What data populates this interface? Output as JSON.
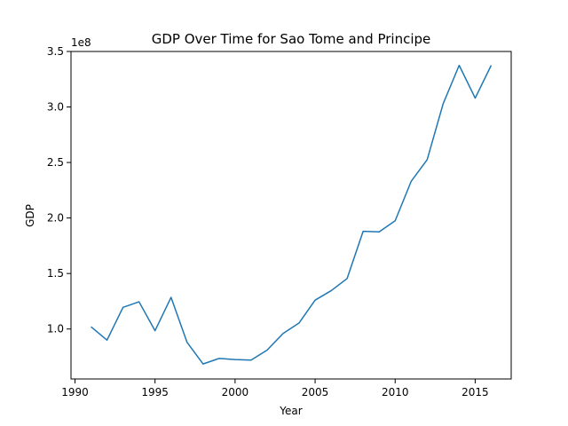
{
  "chart_data": {
    "type": "line",
    "title": "GDP Over Time for Sao Tome and Principe",
    "xlabel": "Year",
    "ylabel": "GDP",
    "y_offset_label": "1e8",
    "xlim": [
      1989.75,
      2017.25
    ],
    "ylim": [
      55000000,
      350000000
    ],
    "xticks": [
      1990,
      1995,
      2000,
      2005,
      2010,
      2015
    ],
    "yticks": [
      100000000,
      150000000,
      200000000,
      250000000,
      300000000,
      350000000
    ],
    "ytick_labels": [
      "1.0",
      "1.5",
      "2.0",
      "2.5",
      "3.0",
      "3.5"
    ],
    "grid": false,
    "legend": "none",
    "series": [
      {
        "color": "#1f77b4",
        "x": [
          1991,
          1992,
          1993,
          1994,
          1995,
          1996,
          1997,
          1998,
          1999,
          2000,
          2001,
          2002,
          2003,
          2004,
          2005,
          2006,
          2007,
          2008,
          2009,
          2010,
          2011,
          2012,
          2013,
          2014,
          2015,
          2016
        ],
        "y": [
          102000000,
          90000000,
          119500000,
          124500000,
          98500000,
          128500000,
          88000000,
          68500000,
          73500000,
          72500000,
          72000000,
          81000000,
          96000000,
          105500000,
          126000000,
          134500000,
          145500000,
          188000000,
          187500000,
          197500000,
          233000000,
          252500000,
          303000000,
          337500000,
          308000000,
          337500000
        ]
      }
    ]
  }
}
